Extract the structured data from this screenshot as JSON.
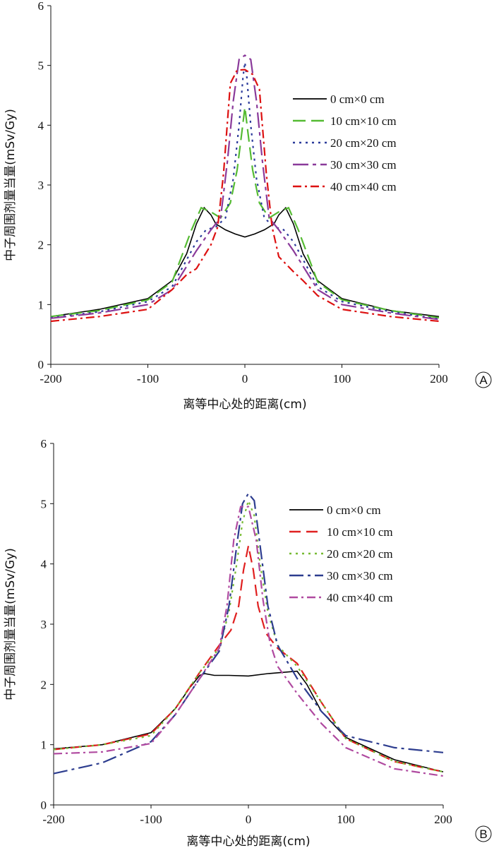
{
  "chart_data": [
    {
      "type": "line",
      "panel_label": "A",
      "xlabel": "离等中心处的距离(cm)",
      "ylabel": "中子周围剂量当量(mSv/Gy)",
      "xlim": [
        -200,
        200
      ],
      "ylim": [
        0,
        6
      ],
      "xticks": [
        "-200",
        "-100",
        "0",
        "100",
        "200"
      ],
      "yticks": [
        "0",
        "1",
        "2",
        "3",
        "4",
        "5",
        "6"
      ],
      "grid": false,
      "legend_position": "right",
      "series": [
        {
          "name": "0 cm×0 cm",
          "color": "#000000",
          "dash": "solid",
          "x": [
            -200,
            -150,
            -100,
            -75,
            -60,
            -50,
            -42,
            -35,
            -30,
            -20,
            -10,
            0,
            10,
            20,
            30,
            35,
            42,
            50,
            60,
            75,
            100,
            150,
            200
          ],
          "y": [
            0.8,
            0.92,
            1.1,
            1.4,
            1.85,
            2.35,
            2.62,
            2.5,
            2.35,
            2.25,
            2.18,
            2.13,
            2.18,
            2.25,
            2.35,
            2.5,
            2.62,
            2.35,
            1.85,
            1.4,
            1.1,
            0.9,
            0.8
          ]
        },
        {
          "name": "10 cm×10 cm",
          "color": "#55bb33",
          "dash": "18,8",
          "x": [
            -200,
            -150,
            -100,
            -75,
            -55,
            -45,
            -35,
            -25,
            -15,
            -8,
            -3,
            0,
            3,
            8,
            15,
            25,
            35,
            45,
            55,
            75,
            100,
            150,
            200
          ],
          "y": [
            0.8,
            0.9,
            1.08,
            1.38,
            2.25,
            2.62,
            2.55,
            2.45,
            2.7,
            3.25,
            3.9,
            4.3,
            3.9,
            3.25,
            2.7,
            2.45,
            2.55,
            2.62,
            2.25,
            1.38,
            1.08,
            0.9,
            0.78
          ]
        },
        {
          "name": "20 cm×20 cm",
          "color": "#2b3a9a",
          "dash": "3,6",
          "x": [
            -200,
            -150,
            -100,
            -75,
            -50,
            -40,
            -30,
            -20,
            -12,
            -6,
            -2,
            0,
            2,
            6,
            12,
            20,
            30,
            40,
            50,
            75,
            100,
            150,
            200
          ],
          "y": [
            0.78,
            0.88,
            1.05,
            1.3,
            2.05,
            2.25,
            2.3,
            2.45,
            3.1,
            4.0,
            4.8,
            5.05,
            4.8,
            4.0,
            3.1,
            2.45,
            2.3,
            2.25,
            2.05,
            1.3,
            1.05,
            0.88,
            0.76
          ]
        },
        {
          "name": "30 cm×30 cm",
          "color": "#8a3a9a",
          "dash": "22,6,5,6",
          "x": [
            -200,
            -150,
            -100,
            -75,
            -50,
            -35,
            -25,
            -18,
            -12,
            -6,
            0,
            6,
            12,
            18,
            25,
            35,
            50,
            75,
            100,
            150,
            200
          ],
          "y": [
            0.77,
            0.86,
            1.0,
            1.25,
            1.9,
            2.25,
            2.45,
            3.4,
            4.4,
            5.1,
            5.17,
            5.1,
            4.4,
            3.4,
            2.45,
            2.25,
            1.9,
            1.25,
            1.0,
            0.86,
            0.75
          ]
        },
        {
          "name": "40 cm×40 cm",
          "color": "#dd1111",
          "dash": "12,5,3,5",
          "x": [
            -200,
            -150,
            -100,
            -75,
            -60,
            -50,
            -35,
            -28,
            -22,
            -15,
            -8,
            0,
            8,
            15,
            22,
            28,
            35,
            50,
            60,
            75,
            100,
            150,
            200
          ],
          "y": [
            0.72,
            0.8,
            0.92,
            1.25,
            1.5,
            1.6,
            2.0,
            2.3,
            3.2,
            4.7,
            4.92,
            4.93,
            4.85,
            4.6,
            3.2,
            2.3,
            1.8,
            1.55,
            1.4,
            1.15,
            0.92,
            0.8,
            0.72
          ]
        }
      ]
    },
    {
      "type": "line",
      "panel_label": "B",
      "xlabel": "离等中心处的距离(cm)",
      "ylabel": "中子周围剂量当量(mSv/Gy)",
      "xlim": [
        -200,
        200
      ],
      "ylim": [
        0,
        6
      ],
      "xticks": [
        "-200",
        "-100",
        "0",
        "100",
        "200"
      ],
      "yticks": [
        "0",
        "1",
        "2",
        "3",
        "4",
        "5",
        "6"
      ],
      "grid": false,
      "legend_position": "right",
      "series": [
        {
          "name": "0 cm×0 cm",
          "color": "#000000",
          "dash": "solid",
          "x": [
            -200,
            -150,
            -100,
            -75,
            -60,
            -50,
            -45,
            -35,
            -20,
            0,
            20,
            35,
            50,
            60,
            75,
            100,
            150,
            200
          ],
          "y": [
            0.93,
            1.0,
            1.2,
            1.6,
            1.95,
            2.15,
            2.18,
            2.15,
            2.15,
            2.14,
            2.18,
            2.2,
            2.22,
            2.0,
            1.55,
            1.12,
            0.75,
            0.55
          ]
        },
        {
          "name": "10 cm×10 cm",
          "color": "#e02020",
          "dash": "16,8",
          "x": [
            -200,
            -150,
            -100,
            -75,
            -50,
            -30,
            -18,
            -10,
            -5,
            0,
            5,
            10,
            18,
            30,
            50,
            75,
            100,
            150,
            200
          ],
          "y": [
            0.92,
            1.0,
            1.18,
            1.6,
            2.2,
            2.65,
            2.9,
            3.3,
            3.9,
            4.3,
            3.9,
            3.3,
            2.85,
            2.6,
            2.35,
            1.7,
            1.1,
            0.72,
            0.55
          ]
        },
        {
          "name": "20 cm×20 cm",
          "color": "#77bb33",
          "dash": "3,6",
          "x": [
            -200,
            -150,
            -100,
            -75,
            -50,
            -30,
            -20,
            -12,
            -6,
            0,
            6,
            12,
            20,
            30,
            50,
            75,
            100,
            150,
            200
          ],
          "y": [
            0.92,
            1.0,
            1.15,
            1.6,
            2.2,
            2.6,
            3.2,
            4.0,
            4.7,
            5.05,
            4.8,
            4.0,
            3.2,
            2.65,
            2.3,
            1.7,
            1.1,
            0.72,
            0.55
          ]
        },
        {
          "name": "30 cm×30 cm",
          "color": "#2d3d8f",
          "dash": "20,6,4,6",
          "x": [
            -200,
            -150,
            -100,
            -75,
            -50,
            -30,
            -20,
            -12,
            -6,
            0,
            6,
            12,
            20,
            30,
            50,
            75,
            100,
            150,
            200
          ],
          "y": [
            0.52,
            0.7,
            1.05,
            1.5,
            2.1,
            2.55,
            3.3,
            4.3,
            5.0,
            5.17,
            5.05,
            4.3,
            3.3,
            2.65,
            2.1,
            1.55,
            1.15,
            0.95,
            0.87
          ]
        },
        {
          "name": "40 cm×40 cm",
          "color": "#b04aa0",
          "dash": "12,5,3,5",
          "x": [
            -200,
            -150,
            -100,
            -75,
            -50,
            -30,
            -22,
            -15,
            -8,
            0,
            8,
            15,
            22,
            30,
            50,
            75,
            100,
            150,
            200
          ],
          "y": [
            0.85,
            0.88,
            1.02,
            1.5,
            2.1,
            2.6,
            3.3,
            4.4,
            4.95,
            4.95,
            4.4,
            3.4,
            2.7,
            2.3,
            1.85,
            1.35,
            0.95,
            0.6,
            0.48
          ]
        }
      ]
    }
  ]
}
